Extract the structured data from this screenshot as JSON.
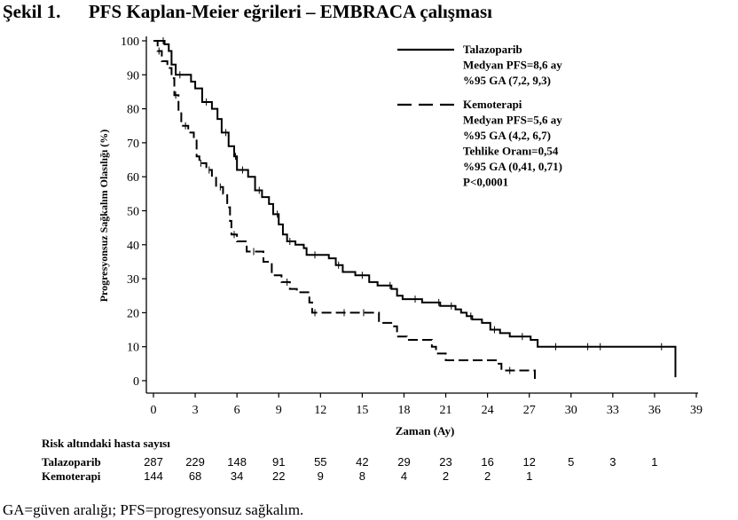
{
  "figure": {
    "title": "Şekil 1.      PFS Kaplan-Meier eğrileri – EMBRACA çalışması",
    "footnote": "GA=güven aralığı; PFS=progresyonsuz sağkalım."
  },
  "chart_data": {
    "type": "line",
    "xlabel": "Zaman (Ay)",
    "ylabel": "Progresyonsuz Sağkalım Olasılığı (%)",
    "xlim": [
      0,
      39
    ],
    "ylim": [
      0,
      100
    ],
    "xticks": [
      0,
      3,
      6,
      9,
      12,
      15,
      18,
      21,
      24,
      27,
      30,
      33,
      36,
      39
    ],
    "yticks": [
      0,
      10,
      20,
      30,
      40,
      50,
      60,
      70,
      80,
      90,
      100
    ],
    "step": true,
    "legend_position": "top-right",
    "series": [
      {
        "name": "Talazoparib",
        "style": "solid",
        "legend_lines": [
          "Talazoparib",
          "Medyan PFS=8,6 ay",
          "%95 GA (7,2, 9,3)"
        ],
        "points": [
          [
            0,
            100
          ],
          [
            0.5,
            100
          ],
          [
            0.8,
            99
          ],
          [
            1.1,
            97
          ],
          [
            1.3,
            93
          ],
          [
            1.6,
            90
          ],
          [
            2.7,
            88
          ],
          [
            3.0,
            86
          ],
          [
            3.5,
            82
          ],
          [
            4.2,
            80
          ],
          [
            4.6,
            77
          ],
          [
            4.9,
            73
          ],
          [
            5.4,
            69
          ],
          [
            5.8,
            66
          ],
          [
            6.0,
            62
          ],
          [
            6.8,
            60
          ],
          [
            7.3,
            56
          ],
          [
            7.8,
            54
          ],
          [
            8.3,
            52
          ],
          [
            8.6,
            49
          ],
          [
            9.0,
            46
          ],
          [
            9.3,
            43
          ],
          [
            9.6,
            41
          ],
          [
            10.2,
            40
          ],
          [
            10.8,
            39
          ],
          [
            11.0,
            37
          ],
          [
            12.6,
            36
          ],
          [
            13.1,
            34
          ],
          [
            13.6,
            32
          ],
          [
            14.5,
            31
          ],
          [
            15.5,
            29
          ],
          [
            16.1,
            28
          ],
          [
            17.1,
            27
          ],
          [
            17.5,
            25
          ],
          [
            17.9,
            24
          ],
          [
            19.3,
            23
          ],
          [
            20.6,
            22
          ],
          [
            21.7,
            21
          ],
          [
            22.1,
            20
          ],
          [
            22.5,
            19
          ],
          [
            22.9,
            18
          ],
          [
            23.6,
            17
          ],
          [
            24.2,
            15
          ],
          [
            24.9,
            14
          ],
          [
            25.6,
            13
          ],
          [
            27.1,
            12
          ],
          [
            27.6,
            10
          ],
          [
            37.5,
            10
          ],
          [
            37.5,
            1
          ]
        ]
      },
      {
        "name": "Kemoterapi",
        "style": "dashed",
        "legend_lines": [
          "Kemoterapi",
          "Medyan PFS=5,6 ay",
          "%95 GA (4,2, 6,7)",
          "Tehlike Oranı=0,54",
          "%95 GA (0,41, 0,71)",
          "P<0,0001"
        ],
        "points": [
          [
            0,
            100
          ],
          [
            0.3,
            97
          ],
          [
            0.6,
            94
          ],
          [
            1.0,
            92
          ],
          [
            1.3,
            89
          ],
          [
            1.5,
            84
          ],
          [
            1.8,
            79
          ],
          [
            2.0,
            75
          ],
          [
            2.5,
            73
          ],
          [
            2.9,
            71
          ],
          [
            3.1,
            66
          ],
          [
            3.3,
            64
          ],
          [
            3.8,
            62
          ],
          [
            4.2,
            60
          ],
          [
            4.5,
            57
          ],
          [
            5.0,
            55
          ],
          [
            5.3,
            51
          ],
          [
            5.5,
            47
          ],
          [
            5.6,
            43
          ],
          [
            6.0,
            41
          ],
          [
            6.7,
            38
          ],
          [
            7.9,
            35
          ],
          [
            8.5,
            31
          ],
          [
            9.2,
            29
          ],
          [
            9.8,
            27
          ],
          [
            10.3,
            26
          ],
          [
            11.2,
            23
          ],
          [
            11.4,
            20
          ],
          [
            16.1,
            20
          ],
          [
            16.2,
            17
          ],
          [
            17.2,
            16
          ],
          [
            17.5,
            13
          ],
          [
            18.2,
            12
          ],
          [
            20.0,
            10
          ],
          [
            20.3,
            8
          ],
          [
            21.0,
            6
          ],
          [
            24.6,
            5
          ],
          [
            25.0,
            3
          ],
          [
            27.4,
            3
          ],
          [
            27.4,
            0.5
          ]
        ]
      }
    ],
    "censor_marks": [
      {
        "series": "Talazoparib",
        "x": [
          0.7,
          1.9,
          3.8,
          5.2,
          5.9,
          6.4,
          7.6,
          8.9,
          9.8,
          11.6,
          13.3,
          15.0,
          17.0,
          18.8,
          20.5,
          21.4,
          22.8,
          24.5,
          26.5,
          28.9,
          31.2,
          32.1,
          36.5
        ]
      },
      {
        "series": "Kemoterapi",
        "x": [
          0.4,
          1.6,
          2.3,
          3.4,
          4.0,
          4.8,
          5.8,
          7.2,
          9.6,
          11.6,
          13.7,
          15.1,
          25.6
        ]
      }
    ]
  },
  "risk_table": {
    "title": "Risk altındaki hasta sayısı",
    "times": [
      0,
      3,
      6,
      9,
      12,
      15,
      18,
      21,
      24,
      27,
      30,
      33,
      36
    ],
    "rows": [
      {
        "label": "Talazoparib",
        "values": [
          "287",
          "229",
          "148",
          "91",
          "55",
          "42",
          "29",
          "23",
          "16",
          "12",
          "5",
          "3",
          "1"
        ]
      },
      {
        "label": "Kemoterapi",
        "values": [
          "144",
          "68",
          "34",
          "22",
          "9",
          "8",
          "4",
          "2",
          "2",
          "1",
          "",
          "",
          ""
        ]
      }
    ]
  }
}
